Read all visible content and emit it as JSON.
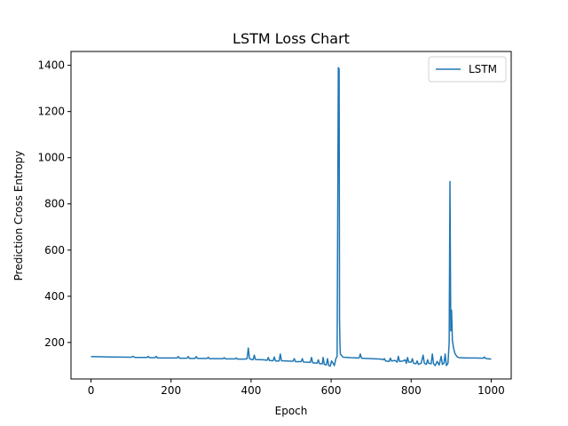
{
  "chart_data": {
    "type": "line",
    "title": "LSTM Loss Chart",
    "xlabel": "Epoch",
    "ylabel": "Prediction Cross Entropy",
    "xlim": [
      -50,
      1050
    ],
    "ylim": [
      42,
      1460
    ],
    "xticks": [
      0,
      200,
      400,
      600,
      800,
      1000
    ],
    "yticks": [
      200,
      400,
      600,
      800,
      1000,
      1200,
      1400
    ],
    "xtick_labels": [
      "0",
      "200",
      "400",
      "600",
      "800",
      "1000"
    ],
    "ytick_labels": [
      "200",
      "400",
      "600",
      "800",
      "1000",
      "1200",
      "1400"
    ],
    "grid": false,
    "legend": {
      "position": "top-right"
    },
    "series": [
      {
        "name": "LSTM",
        "color": "#1f77b4",
        "points": [
          [
            0,
            139
          ],
          [
            50,
            137
          ],
          [
            100,
            136
          ],
          [
            105,
            140
          ],
          [
            110,
            135
          ],
          [
            140,
            135
          ],
          [
            143,
            140
          ],
          [
            146,
            134
          ],
          [
            160,
            134
          ],
          [
            163,
            140
          ],
          [
            166,
            133
          ],
          [
            200,
            133
          ],
          [
            215,
            133
          ],
          [
            218,
            139
          ],
          [
            221,
            132
          ],
          [
            240,
            132
          ],
          [
            243,
            139
          ],
          [
            246,
            131
          ],
          [
            260,
            131
          ],
          [
            263,
            139
          ],
          [
            266,
            131
          ],
          [
            290,
            131
          ],
          [
            293,
            136
          ],
          [
            296,
            130
          ],
          [
            320,
            130
          ],
          [
            330,
            130
          ],
          [
            333,
            134
          ],
          [
            336,
            129
          ],
          [
            360,
            129
          ],
          [
            363,
            133
          ],
          [
            366,
            128
          ],
          [
            385,
            128
          ],
          [
            390,
            130
          ],
          [
            393,
            176
          ],
          [
            396,
            130
          ],
          [
            400,
            127
          ],
          [
            405,
            125
          ],
          [
            408,
            145
          ],
          [
            411,
            126
          ],
          [
            430,
            125
          ],
          [
            440,
            123
          ],
          [
            443,
            135
          ],
          [
            446,
            122
          ],
          [
            455,
            121
          ],
          [
            458,
            137
          ],
          [
            461,
            120
          ],
          [
            470,
            120
          ],
          [
            473,
            150
          ],
          [
            476,
            121
          ],
          [
            490,
            120
          ],
          [
            500,
            119
          ],
          [
            505,
            119
          ],
          [
            508,
            130
          ],
          [
            511,
            117
          ],
          [
            525,
            117
          ],
          [
            528,
            130
          ],
          [
            531,
            115
          ],
          [
            548,
            114
          ],
          [
            551,
            135
          ],
          [
            554,
            112
          ],
          [
            565,
            110
          ],
          [
            568,
            125
          ],
          [
            571,
            108
          ],
          [
            578,
            108
          ],
          [
            580,
            135
          ],
          [
            583,
            105
          ],
          [
            588,
            103
          ],
          [
            591,
            130
          ],
          [
            594,
            100
          ],
          [
            598,
            98
          ],
          [
            601,
            120
          ],
          [
            605,
            110
          ],
          [
            608,
            100
          ],
          [
            612,
            130
          ],
          [
            615,
            140
          ],
          [
            618,
            1390
          ],
          [
            620,
            1385
          ],
          [
            621,
            300
          ],
          [
            622,
            200
          ],
          [
            623,
            150
          ],
          [
            630,
            136
          ],
          [
            650,
            134
          ],
          [
            670,
            133
          ],
          [
            673,
            150
          ],
          [
            676,
            132
          ],
          [
            700,
            130
          ],
          [
            725,
            128
          ],
          [
            730,
            125
          ],
          [
            733,
            130
          ],
          [
            736,
            120
          ],
          [
            745,
            118
          ],
          [
            748,
            132
          ],
          [
            751,
            120
          ],
          [
            760,
            122
          ],
          [
            765,
            115
          ],
          [
            768,
            140
          ],
          [
            771,
            118
          ],
          [
            780,
            120
          ],
          [
            785,
            125
          ],
          [
            788,
            110
          ],
          [
            791,
            135
          ],
          [
            794,
            115
          ],
          [
            800,
            115
          ],
          [
            803,
            130
          ],
          [
            806,
            110
          ],
          [
            812,
            108
          ],
          [
            815,
            120
          ],
          [
            818,
            105
          ],
          [
            825,
            110
          ],
          [
            830,
            145
          ],
          [
            833,
            110
          ],
          [
            838,
            105
          ],
          [
            841,
            125
          ],
          [
            844,
            110
          ],
          [
            850,
            108
          ],
          [
            853,
            150
          ],
          [
            856,
            108
          ],
          [
            860,
            100
          ],
          [
            865,
            118
          ],
          [
            870,
            102
          ],
          [
            875,
            140
          ],
          [
            878,
            105
          ],
          [
            882,
            110
          ],
          [
            885,
            150
          ],
          [
            888,
            100
          ],
          [
            892,
            110
          ],
          [
            895,
            200
          ],
          [
            897,
            897
          ],
          [
            899,
            250
          ],
          [
            901,
            340
          ],
          [
            903,
            210
          ],
          [
            906,
            175
          ],
          [
            910,
            150
          ],
          [
            915,
            138
          ],
          [
            920,
            134
          ],
          [
            940,
            133
          ],
          [
            960,
            133
          ],
          [
            980,
            132
          ],
          [
            983,
            137
          ],
          [
            986,
            131
          ],
          [
            990,
            130
          ],
          [
            1000,
            128
          ]
        ]
      }
    ]
  }
}
